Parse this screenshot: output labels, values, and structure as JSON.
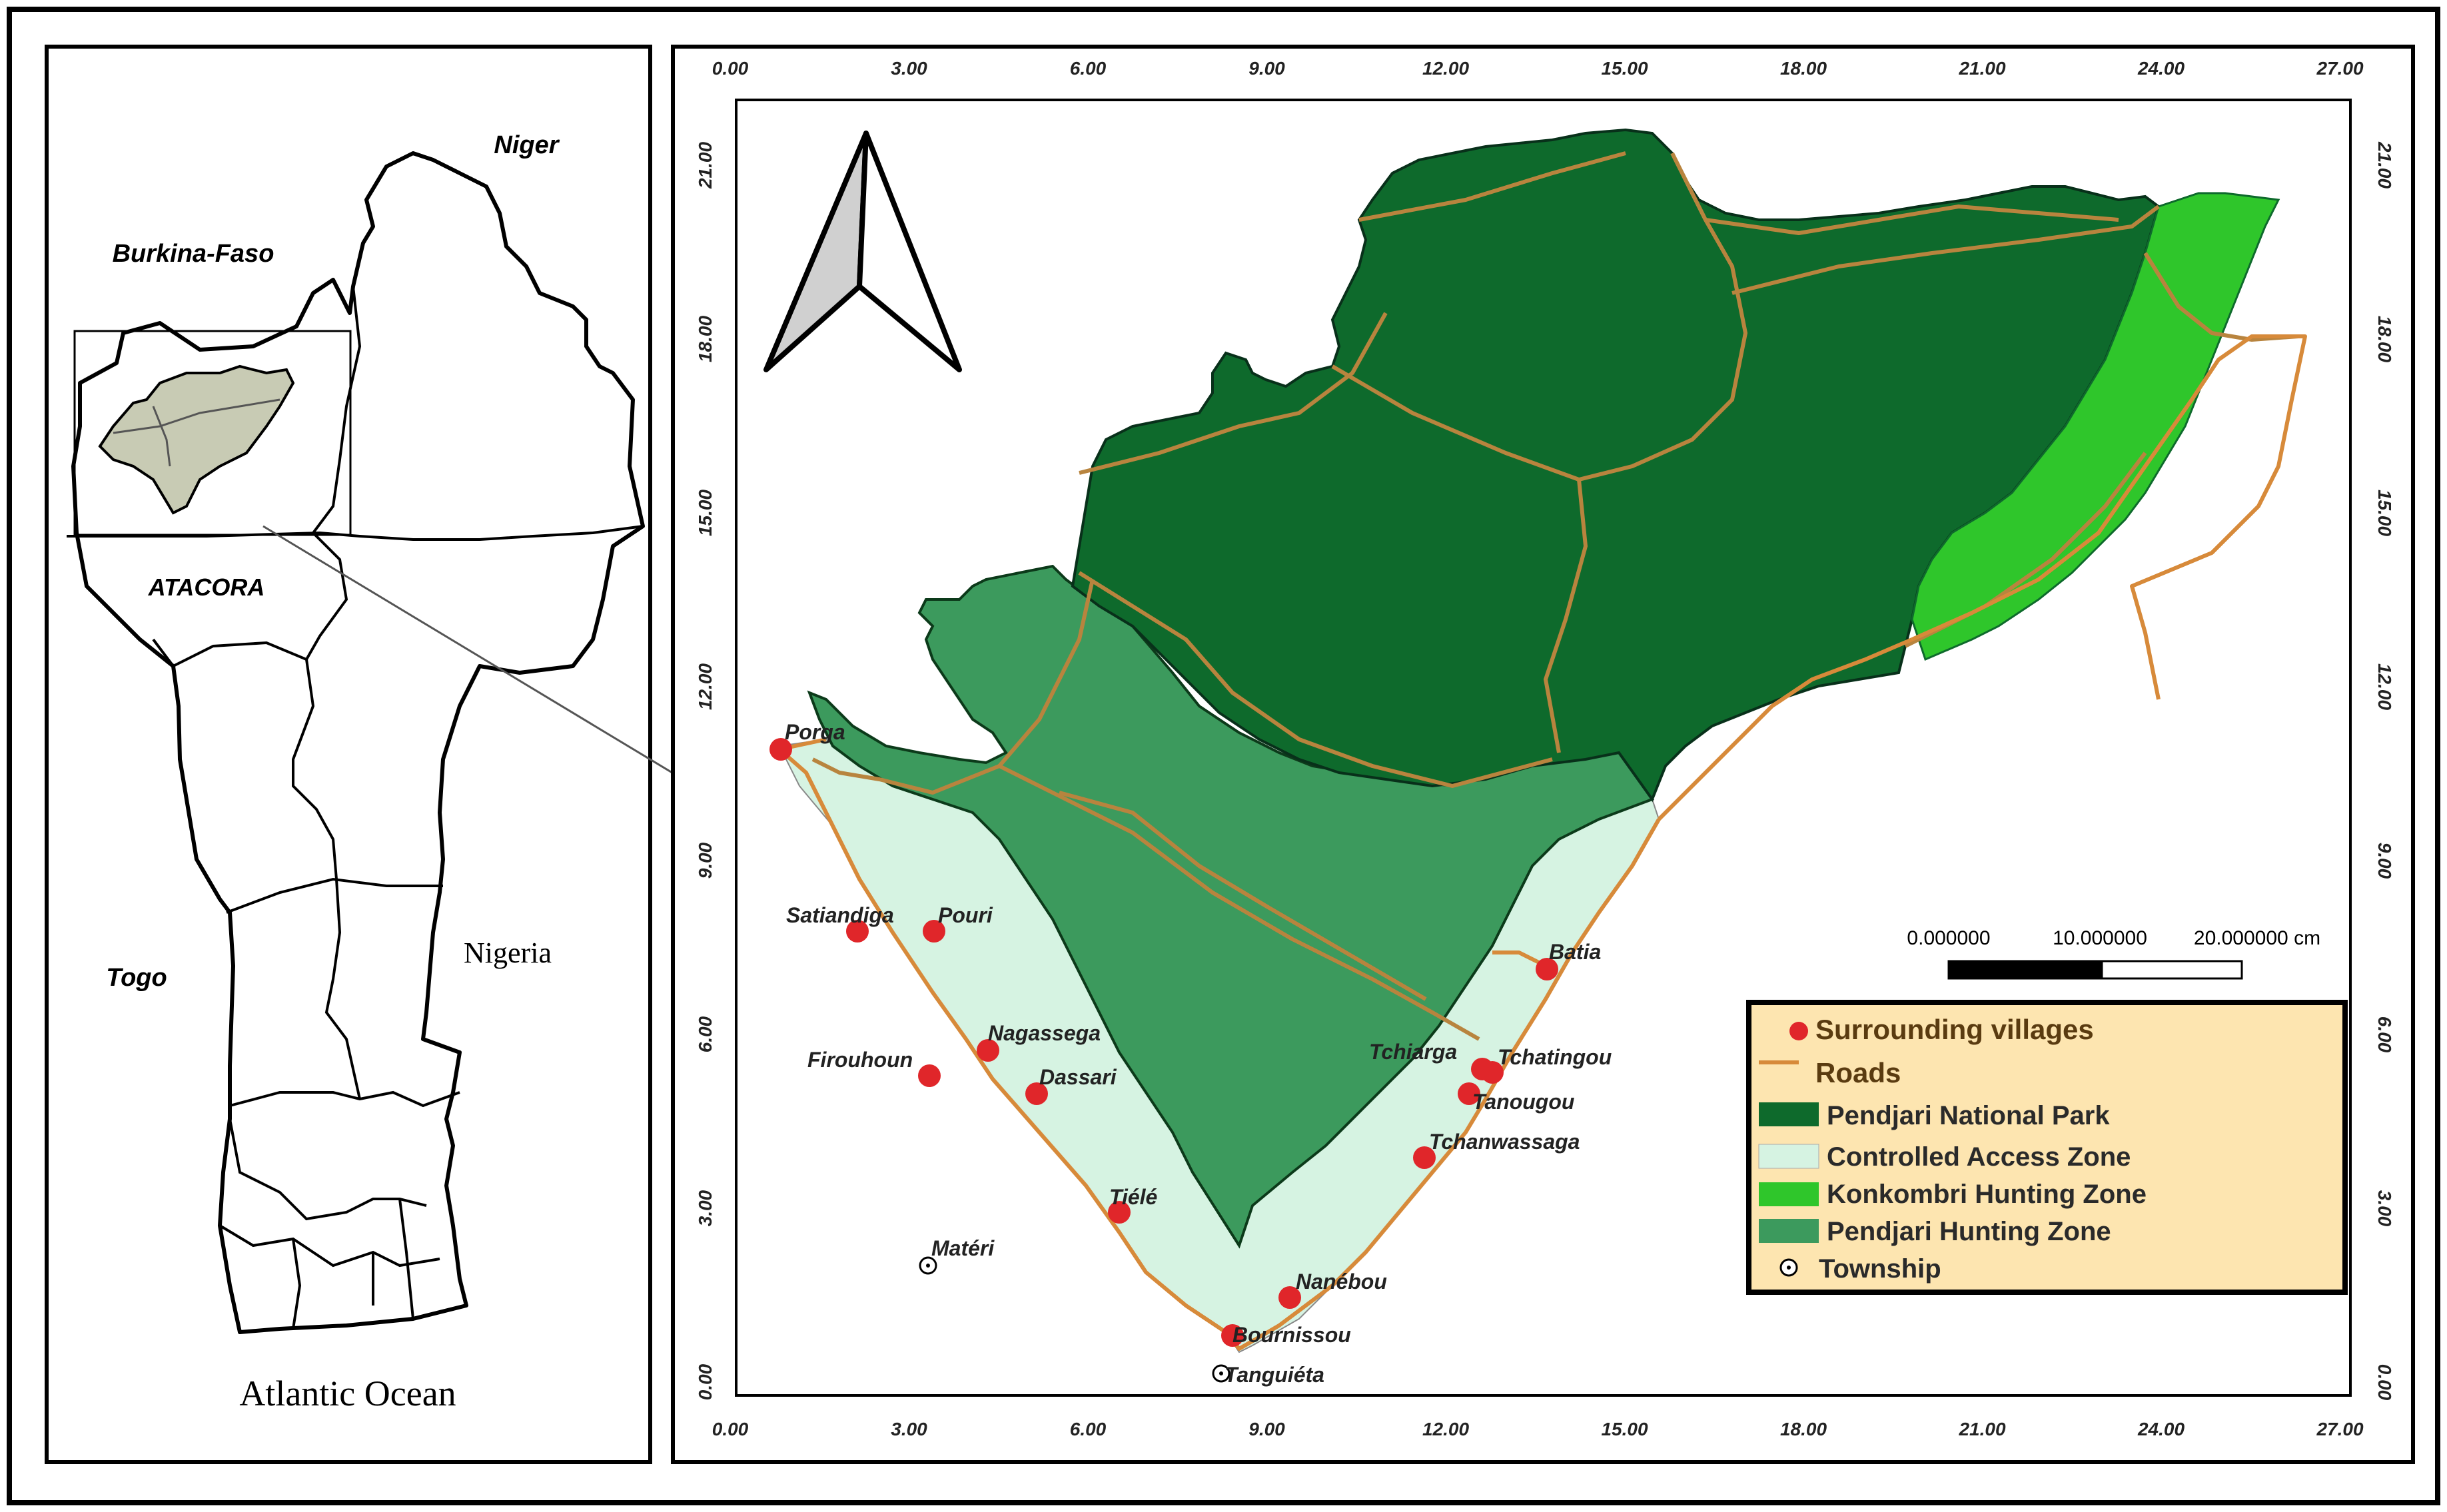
{
  "inset": {
    "countries": {
      "niger": "Niger",
      "burkina": "Burkina-Faso",
      "togo": "Togo",
      "nigeria": "Nigeria"
    },
    "region": "ATACORA",
    "ocean": "Atlantic Ocean"
  },
  "map": {
    "axis_ticks": [
      "0.00",
      "3.00",
      "6.00",
      "9.00",
      "12.00",
      "15.00",
      "18.00",
      "21.00",
      "24.00",
      "27.00"
    ],
    "axis_ticks_y": [
      "0.00",
      "3.00",
      "6.00",
      "9.00",
      "12.00",
      "15.00",
      "18.00",
      "21.00"
    ],
    "scale_bar": {
      "label0": "0.000000",
      "label1": "10.000000",
      "label2": "20.000000 cm"
    },
    "villages": [
      "Porga",
      "Satiandiga",
      "Pouri",
      "Nagassega",
      "Firouhoun",
      "Dassari",
      "Tiélé",
      "Nanébou",
      "Bournissou",
      "Tanguiéta",
      "Batia",
      "Tchatingou",
      "Tchiarga",
      "Tanougou",
      "Tchanwassaga",
      "Matéri"
    ],
    "legend": {
      "villages": "Surrounding villages",
      "roads": "Roads",
      "park": "Pendjari National Park",
      "controlled": "Controlled Access Zone",
      "konkombri": "Konkombri Hunting Zone",
      "hunting": "Pendjari Hunting Zone",
      "township": "Township"
    }
  },
  "colors": {
    "park": "#0e6a2c",
    "controlled": "#d6f3e2",
    "konkombri": "#2fc62b",
    "hunting": "#3c9a5d",
    "roads": "#d78a3a",
    "village": "#e0262a",
    "legend_bg": "#fde5b0",
    "inset_highlight": "#c8cbb4"
  }
}
